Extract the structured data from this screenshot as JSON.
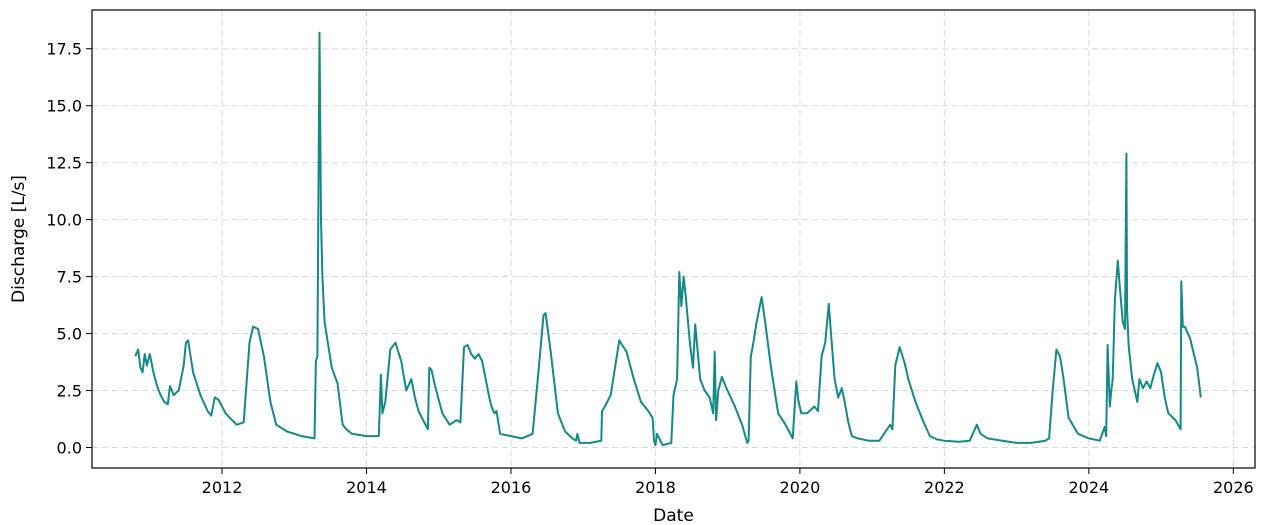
{
  "chart_data": {
    "type": "line",
    "title": "",
    "xlabel": "Date",
    "ylabel": "Discharge [L/s]",
    "x_axis": {
      "kind": "year",
      "min": 2010.2,
      "max": 2026.3,
      "ticks": [
        2012,
        2014,
        2016,
        2018,
        2020,
        2022,
        2024,
        2026
      ]
    },
    "y_axis": {
      "min": -0.9,
      "max": 19.2,
      "ticks": [
        0.0,
        2.5,
        5.0,
        7.5,
        10.0,
        12.5,
        15.0,
        17.5
      ],
      "tick_labels": [
        "0.0",
        "2.5",
        "5.0",
        "7.5",
        "10.0",
        "12.5",
        "15.0",
        "17.5"
      ]
    },
    "grid": true,
    "legend": "none",
    "line_color": "#138a87",
    "series": [
      {
        "x": [
          2010.8,
          2010.84,
          2010.87,
          2010.9,
          2010.93,
          2010.96,
          2011.0,
          2011.05,
          2011.1,
          2011.15,
          2011.2,
          2011.25,
          2011.28,
          2011.33,
          2011.4,
          2011.47,
          2011.5,
          2011.53,
          2011.6,
          2011.7,
          2011.8,
          2011.85,
          2011.9,
          2011.95,
          2012.05,
          2012.2,
          2012.3,
          2012.38,
          2012.43,
          2012.5,
          2012.58,
          2012.67,
          2012.75,
          2012.9,
          2013.1,
          2013.28,
          2013.3,
          2013.32,
          2013.35,
          2013.37,
          2013.39,
          2013.42,
          2013.47,
          2013.52,
          2013.6,
          2013.65,
          2013.67,
          2013.72,
          2013.8,
          2014.0,
          2014.17,
          2014.2,
          2014.22,
          2014.26,
          2014.33,
          2014.4,
          2014.48,
          2014.55,
          2014.62,
          2014.67,
          2014.72,
          2014.8,
          2014.85,
          2014.87,
          2014.9,
          2014.95,
          2015.05,
          2015.15,
          2015.25,
          2015.3,
          2015.35,
          2015.4,
          2015.45,
          2015.5,
          2015.55,
          2015.6,
          2015.65,
          2015.7,
          2015.73,
          2015.77,
          2015.8,
          2015.85,
          2016.0,
          2016.15,
          2016.3,
          2016.38,
          2016.45,
          2016.48,
          2016.55,
          2016.65,
          2016.75,
          2016.85,
          2016.9,
          2016.92,
          2016.95,
          2017.1,
          2017.25,
          2017.26,
          2017.3,
          2017.38,
          2017.45,
          2017.5,
          2017.6,
          2017.7,
          2017.8,
          2017.9,
          2017.96,
          2017.98,
          2018.0,
          2018.02,
          2018.1,
          2018.22,
          2018.25,
          2018.3,
          2018.33,
          2018.36,
          2018.39,
          2018.42,
          2018.48,
          2018.52,
          2018.55,
          2018.62,
          2018.68,
          2018.75,
          2018.8,
          2018.82,
          2018.84,
          2018.87,
          2018.92,
          2018.97,
          2019.1,
          2019.2,
          2019.27,
          2019.29,
          2019.32,
          2019.35,
          2019.4,
          2019.47,
          2019.52,
          2019.6,
          2019.7,
          2019.8,
          2019.9,
          2019.95,
          2019.98,
          2020.02,
          2020.1,
          2020.2,
          2020.25,
          2020.3,
          2020.35,
          2020.4,
          2020.43,
          2020.48,
          2020.53,
          2020.58,
          2020.62,
          2020.67,
          2020.72,
          2020.8,
          2020.95,
          2021.1,
          2021.25,
          2021.28,
          2021.32,
          2021.38,
          2021.45,
          2021.5,
          2021.6,
          2021.7,
          2021.8,
          2021.9,
          2022.0,
          2022.2,
          2022.35,
          2022.45,
          2022.5,
          2022.6,
          2022.8,
          2023.0,
          2023.2,
          2023.4,
          2023.45,
          2023.5,
          2023.55,
          2023.6,
          2023.65,
          2023.72,
          2023.85,
          2024.0,
          2024.15,
          2024.22,
          2024.24,
          2024.26,
          2024.29,
          2024.31,
          2024.33,
          2024.36,
          2024.4,
          2024.43,
          2024.47,
          2024.5,
          2024.52,
          2024.53,
          2024.55,
          2024.6,
          2024.67,
          2024.7,
          2024.75,
          2024.8,
          2024.85,
          2024.9,
          2024.95,
          2025.0,
          2025.05,
          2025.1,
          2025.2,
          2025.27,
          2025.28,
          2025.3,
          2025.33,
          2025.4,
          2025.5,
          2025.55
        ],
        "y": [
          4.0,
          4.3,
          3.5,
          3.3,
          4.1,
          3.6,
          4.1,
          3.3,
          2.7,
          2.3,
          2.0,
          1.9,
          2.7,
          2.3,
          2.5,
          3.6,
          4.6,
          4.7,
          3.3,
          2.3,
          1.6,
          1.4,
          2.2,
          2.1,
          1.5,
          1.0,
          1.1,
          4.6,
          5.3,
          5.2,
          4.0,
          2.0,
          1.0,
          0.7,
          0.5,
          0.4,
          3.8,
          4.0,
          18.2,
          10.0,
          7.5,
          5.5,
          4.5,
          3.5,
          2.8,
          1.5,
          1.0,
          0.8,
          0.6,
          0.5,
          0.5,
          3.2,
          1.5,
          2.0,
          4.3,
          4.6,
          3.8,
          2.5,
          3.0,
          2.2,
          1.6,
          1.1,
          0.8,
          3.5,
          3.4,
          2.7,
          1.5,
          1.0,
          1.2,
          1.1,
          4.4,
          4.5,
          4.1,
          3.9,
          4.1,
          3.8,
          3.0,
          2.2,
          1.8,
          1.5,
          1.6,
          0.6,
          0.5,
          0.4,
          0.6,
          3.3,
          5.8,
          5.9,
          4.2,
          1.5,
          0.7,
          0.4,
          0.3,
          0.6,
          0.2,
          0.2,
          0.3,
          1.6,
          1.8,
          2.3,
          3.7,
          4.7,
          4.2,
          3.0,
          2.0,
          1.6,
          1.3,
          0.3,
          0.1,
          0.6,
          0.1,
          0.2,
          2.3,
          3.0,
          7.7,
          6.2,
          7.5,
          6.6,
          4.5,
          3.5,
          5.4,
          3.0,
          2.5,
          2.2,
          1.5,
          4.2,
          1.2,
          2.5,
          3.1,
          2.7,
          1.8,
          1.0,
          0.2,
          0.3,
          4.0,
          4.5,
          5.5,
          6.6,
          5.5,
          3.5,
          1.5,
          1.0,
          0.4,
          2.9,
          2.0,
          1.5,
          1.5,
          1.8,
          1.6,
          4.0,
          4.6,
          6.3,
          5.0,
          3.0,
          2.2,
          2.6,
          2.0,
          1.1,
          0.5,
          0.4,
          0.3,
          0.3,
          1.0,
          0.8,
          3.6,
          4.4,
          3.7,
          3.0,
          2.0,
          1.2,
          0.5,
          0.35,
          0.3,
          0.25,
          0.3,
          1.0,
          0.6,
          0.4,
          0.3,
          0.2,
          0.2,
          0.3,
          0.4,
          2.5,
          4.3,
          4.0,
          3.0,
          1.3,
          0.6,
          0.4,
          0.3,
          0.9,
          0.5,
          4.5,
          1.8,
          2.5,
          3.0,
          6.5,
          8.2,
          7.0,
          5.5,
          5.2,
          12.9,
          6.0,
          4.5,
          3.0,
          2.0,
          3.0,
          2.6,
          2.9,
          2.6,
          3.2,
          3.7,
          3.3,
          2.2,
          1.5,
          1.2,
          0.8,
          7.3,
          5.3,
          5.3,
          4.8,
          3.5,
          2.2
        ]
      }
    ]
  }
}
